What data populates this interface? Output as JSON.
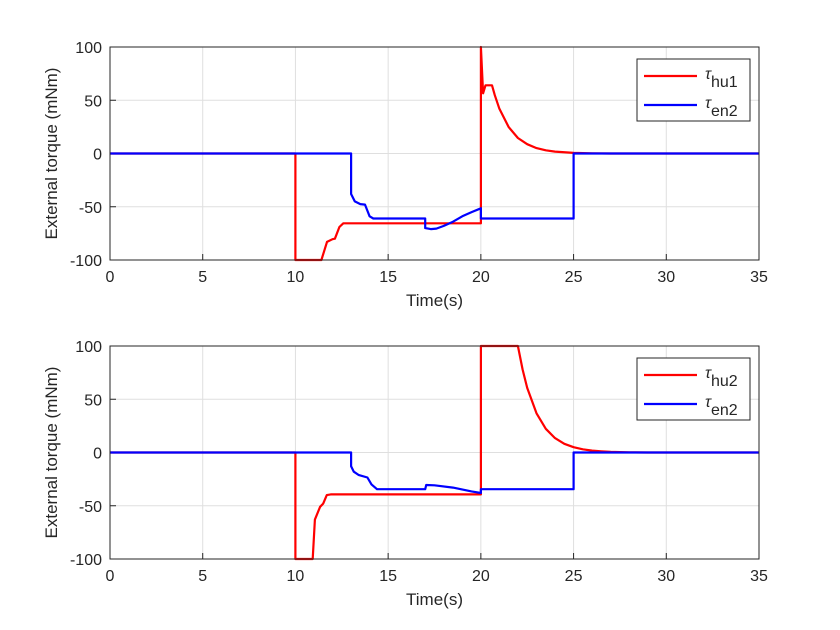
{
  "chart_data": [
    {
      "type": "line",
      "xlabel": "Time(s)",
      "ylabel": "External torque (mNm)",
      "xlim": [
        0,
        35
      ],
      "ylim": [
        -100,
        100
      ],
      "xticks": [
        "0",
        "5",
        "10",
        "15",
        "20",
        "25",
        "30",
        "35"
      ],
      "yticks": [
        "-100",
        "-50",
        "0",
        "50",
        "100"
      ],
      "grid": true,
      "legend_position": "top-right",
      "series": [
        {
          "symbol": "τ",
          "sub": "hu1",
          "color": "#ff0000",
          "points": [
            [
              0,
              0
            ],
            [
              10,
              0
            ],
            [
              10,
              -100
            ],
            [
              11.4,
              -100
            ],
            [
              11.7,
              -83
            ],
            [
              12.0,
              -80.5
            ],
            [
              12.13,
              -80
            ],
            [
              12.37,
              -69
            ],
            [
              12.58,
              -65.5
            ],
            [
              20,
              -65.5
            ],
            [
              20,
              100
            ],
            [
              20.12,
              56.5
            ],
            [
              20.25,
              64
            ],
            [
              20.6,
              64
            ],
            [
              20.75,
              54.7
            ],
            [
              21,
              42
            ],
            [
              21.5,
              24.8
            ],
            [
              22,
              14.6
            ],
            [
              22.5,
              8.7
            ],
            [
              23,
              5.1
            ],
            [
              23.5,
              3
            ],
            [
              24,
              1.8
            ],
            [
              25,
              0.6
            ],
            [
              26,
              0.2
            ],
            [
              27,
              0
            ],
            [
              35,
              0
            ]
          ]
        },
        {
          "symbol": "τ",
          "sub": "en2",
          "color": "#0000ff",
          "points": [
            [
              0,
              0
            ],
            [
              13,
              0
            ],
            [
              13,
              -38
            ],
            [
              13.2,
              -45
            ],
            [
              13.5,
              -47.5
            ],
            [
              13.75,
              -48
            ],
            [
              14.0,
              -59
            ],
            [
              14.2,
              -61
            ],
            [
              17,
              -61
            ],
            [
              17,
              -70
            ],
            [
              17.3,
              -71
            ],
            [
              17.6,
              -70.5
            ],
            [
              18,
              -68
            ],
            [
              18.5,
              -64
            ],
            [
              19,
              -59
            ],
            [
              19.5,
              -55
            ],
            [
              20,
              -51.5
            ],
            [
              20,
              -61
            ],
            [
              25,
              -61
            ],
            [
              25,
              0
            ],
            [
              35,
              0
            ]
          ]
        }
      ]
    },
    {
      "type": "line",
      "xlabel": "Time(s)",
      "ylabel": "External torque (mNm)",
      "xlim": [
        0,
        35
      ],
      "ylim": [
        -100,
        100
      ],
      "xticks": [
        "0",
        "5",
        "10",
        "15",
        "20",
        "25",
        "30",
        "35"
      ],
      "yticks": [
        "-100",
        "-50",
        "0",
        "50",
        "100"
      ],
      "grid": true,
      "legend_position": "top-right",
      "series": [
        {
          "symbol": "τ",
          "sub": "hu2",
          "color": "#ff0000",
          "points": [
            [
              0,
              0
            ],
            [
              10,
              0
            ],
            [
              10,
              -100
            ],
            [
              10.93,
              -100
            ],
            [
              11.05,
              -63
            ],
            [
              11.33,
              -51
            ],
            [
              11.5,
              -48
            ],
            [
              11.69,
              -40
            ],
            [
              11.9,
              -39.3
            ],
            [
              20,
              -39.3
            ],
            [
              20,
              100
            ],
            [
              22,
              100
            ],
            [
              22.25,
              77.9
            ],
            [
              22.5,
              60.7
            ],
            [
              23,
              36.8
            ],
            [
              23.5,
              22.3
            ],
            [
              24,
              13.5
            ],
            [
              24.5,
              8.2
            ],
            [
              25,
              5
            ],
            [
              25.5,
              3
            ],
            [
              26,
              1.8
            ],
            [
              26.5,
              1.1
            ],
            [
              27,
              0.7
            ],
            [
              28,
              0.2
            ],
            [
              29,
              0
            ],
            [
              35,
              0
            ]
          ]
        },
        {
          "symbol": "τ",
          "sub": "en2",
          "color": "#0000ff",
          "points": [
            [
              0,
              0
            ],
            [
              13,
              0
            ],
            [
              13,
              -13
            ],
            [
              13.15,
              -18
            ],
            [
              13.4,
              -21
            ],
            [
              13.88,
              -23.5
            ],
            [
              14.1,
              -30
            ],
            [
              14.4,
              -34.5
            ],
            [
              17,
              -34.5
            ],
            [
              17.05,
              -30.5
            ],
            [
              17.5,
              -30.8
            ],
            [
              18.5,
              -33
            ],
            [
              19.5,
              -36.5
            ],
            [
              20,
              -38
            ],
            [
              20,
              -34.5
            ],
            [
              25,
              -34.5
            ],
            [
              25,
              0
            ],
            [
              35,
              0
            ]
          ]
        }
      ]
    }
  ]
}
